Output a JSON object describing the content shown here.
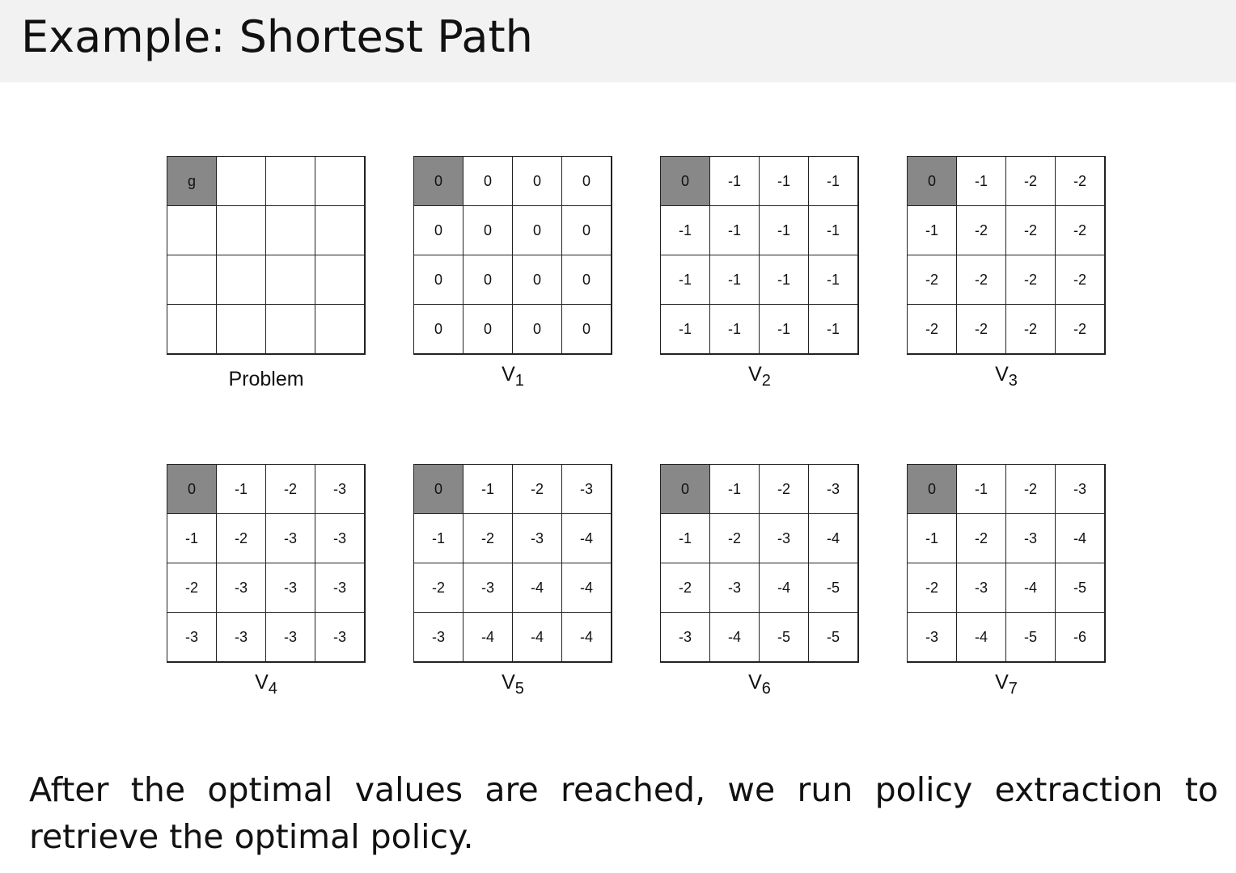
{
  "title": "Example: Shortest Path",
  "goal_color": "#888888",
  "panels": [
    {
      "label": "Problem",
      "sub": "",
      "cells": [
        [
          "g",
          "",
          "",
          ""
        ],
        [
          "",
          "",
          "",
          ""
        ],
        [
          "",
          "",
          "",
          ""
        ],
        [
          "",
          "",
          "",
          ""
        ]
      ]
    },
    {
      "label": "V",
      "sub": "1",
      "cells": [
        [
          "0",
          "0",
          "0",
          "0"
        ],
        [
          "0",
          "0",
          "0",
          "0"
        ],
        [
          "0",
          "0",
          "0",
          "0"
        ],
        [
          "0",
          "0",
          "0",
          "0"
        ]
      ]
    },
    {
      "label": "V",
      "sub": "2",
      "cells": [
        [
          "0",
          "-1",
          "-1",
          "-1"
        ],
        [
          "-1",
          "-1",
          "-1",
          "-1"
        ],
        [
          "-1",
          "-1",
          "-1",
          "-1"
        ],
        [
          "-1",
          "-1",
          "-1",
          "-1"
        ]
      ]
    },
    {
      "label": "V",
      "sub": "3",
      "cells": [
        [
          "0",
          "-1",
          "-2",
          "-2"
        ],
        [
          "-1",
          "-2",
          "-2",
          "-2"
        ],
        [
          "-2",
          "-2",
          "-2",
          "-2"
        ],
        [
          "-2",
          "-2",
          "-2",
          "-2"
        ]
      ]
    },
    {
      "label": "V",
      "sub": "4",
      "cells": [
        [
          "0",
          "-1",
          "-2",
          "-3"
        ],
        [
          "-1",
          "-2",
          "-3",
          "-3"
        ],
        [
          "-2",
          "-3",
          "-3",
          "-3"
        ],
        [
          "-3",
          "-3",
          "-3",
          "-3"
        ]
      ]
    },
    {
      "label": "V",
      "sub": "5",
      "cells": [
        [
          "0",
          "-1",
          "-2",
          "-3"
        ],
        [
          "-1",
          "-2",
          "-3",
          "-4"
        ],
        [
          "-2",
          "-3",
          "-4",
          "-4"
        ],
        [
          "-3",
          "-4",
          "-4",
          "-4"
        ]
      ]
    },
    {
      "label": "V",
      "sub": "6",
      "cells": [
        [
          "0",
          "-1",
          "-2",
          "-3"
        ],
        [
          "-1",
          "-2",
          "-3",
          "-4"
        ],
        [
          "-2",
          "-3",
          "-4",
          "-5"
        ],
        [
          "-3",
          "-4",
          "-5",
          "-5"
        ]
      ]
    },
    {
      "label": "V",
      "sub": "7",
      "cells": [
        [
          "0",
          "-1",
          "-2",
          "-3"
        ],
        [
          "-1",
          "-2",
          "-3",
          "-4"
        ],
        [
          "-2",
          "-3",
          "-4",
          "-5"
        ],
        [
          "-3",
          "-4",
          "-5",
          "-6"
        ]
      ]
    }
  ],
  "body_text": "After the optimal values are reached, we run policy extraction to retrieve the optimal policy."
}
